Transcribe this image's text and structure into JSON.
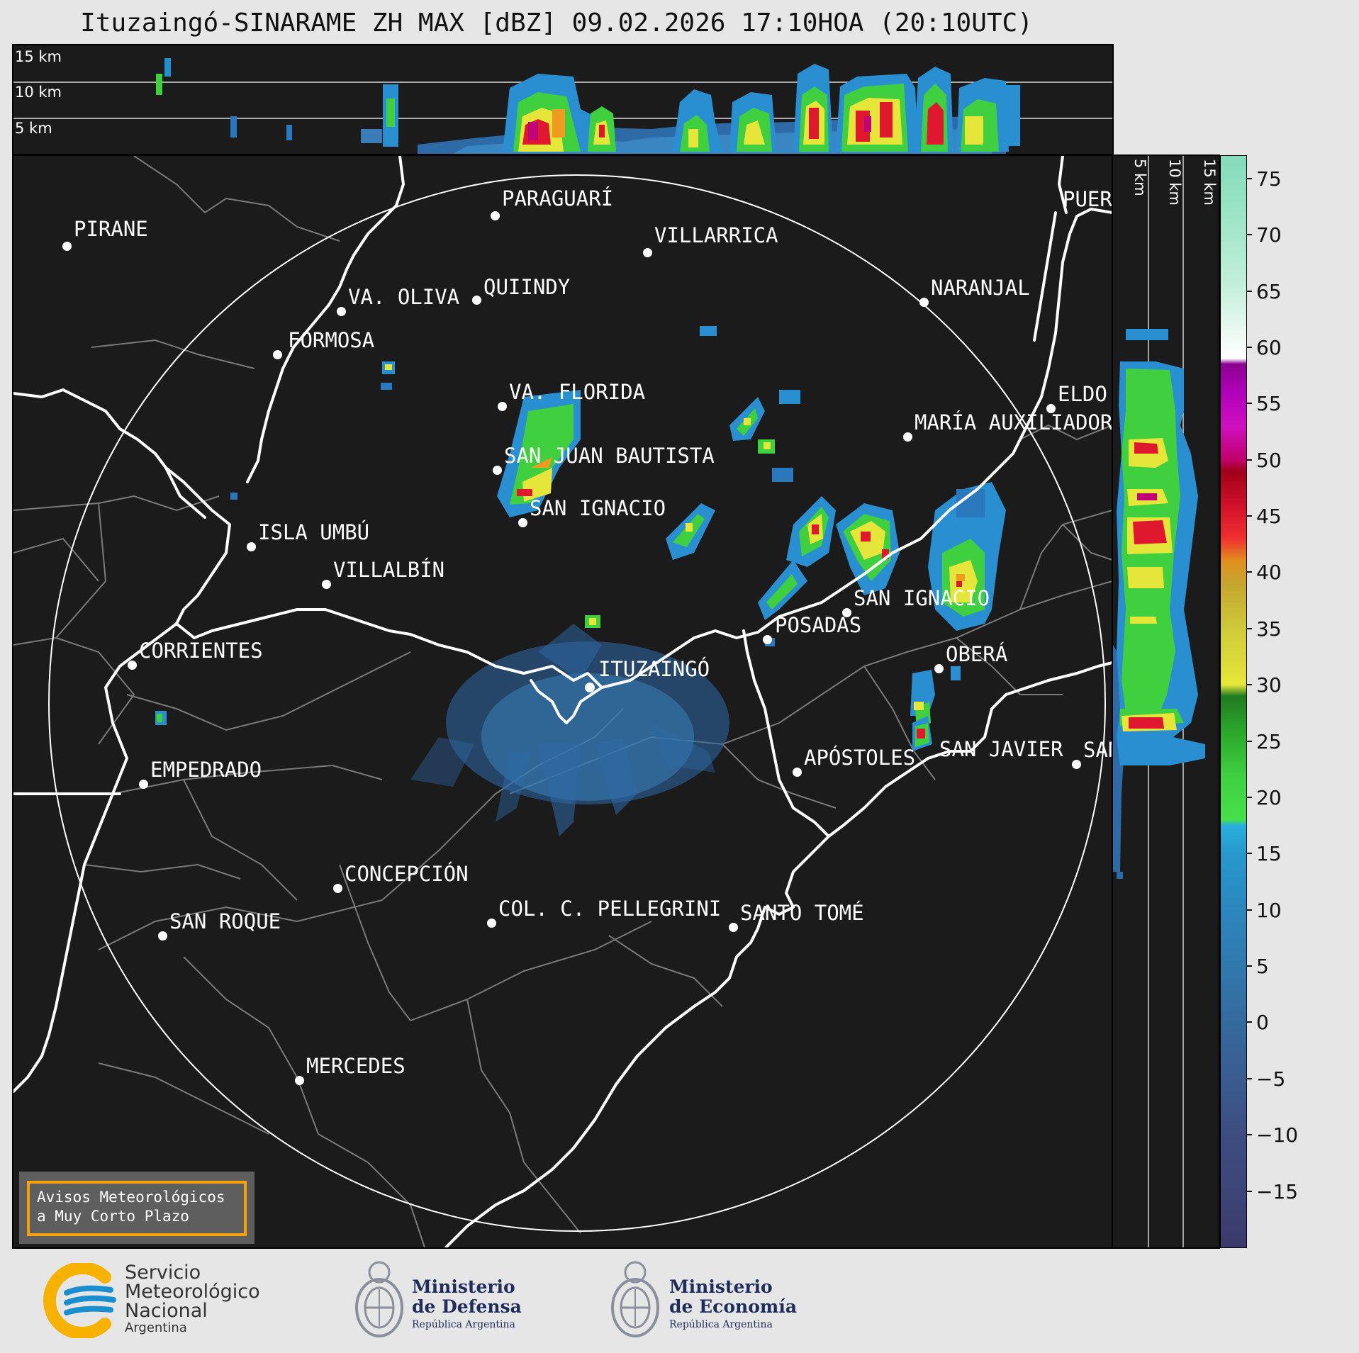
{
  "title": "Ituzaingó-SINARAME ZH MAX [dBZ] 09.02.2026 17:10HOA (20:10UTC)",
  "top_panel": {
    "height_labels": [
      "15 km",
      "10 km",
      "5 km"
    ]
  },
  "side_panel": {
    "height_labels": [
      "5 km",
      "10 km",
      "15 km"
    ]
  },
  "colorbar": {
    "unit": "dBZ",
    "ticks": [
      "75",
      "70",
      "65",
      "60",
      "55",
      "50",
      "45",
      "40",
      "35",
      "30",
      "25",
      "20",
      "15",
      "10",
      "5",
      "0",
      "−5",
      "−10",
      "−15"
    ]
  },
  "cities": [
    {
      "name": "PIRANE"
    },
    {
      "name": "PARAGUARÍ"
    },
    {
      "name": "VILLARRICA"
    },
    {
      "name": "PUERTO"
    },
    {
      "name": "QUIINDY"
    },
    {
      "name": "VA. OLIVA"
    },
    {
      "name": "NARANJAL"
    },
    {
      "name": "FORMOSA"
    },
    {
      "name": "VA. FLORIDA"
    },
    {
      "name": "ELDORADO"
    },
    {
      "name": "MARÍA AUXILIADORA"
    },
    {
      "name": "SAN JUAN BAUTISTA"
    },
    {
      "name": "SAN IGNACIO"
    },
    {
      "name": "ISLA UMBÚ"
    },
    {
      "name": "VILLALBÍN"
    },
    {
      "name": "SAN IGNACIO"
    },
    {
      "name": "POSADAS"
    },
    {
      "name": "CORRIENTES"
    },
    {
      "name": "ITUZAINGÓ"
    },
    {
      "name": "OBERÁ"
    },
    {
      "name": "APÓSTOLES"
    },
    {
      "name": "SAN JAVIER"
    },
    {
      "name": "SAN"
    },
    {
      "name": "EMPEDRADO"
    },
    {
      "name": "CONCEPCIÓN"
    },
    {
      "name": "COL. C. PELLEGRINI"
    },
    {
      "name": "SANTO TOMÉ"
    },
    {
      "name": "SAN ROQUE"
    },
    {
      "name": "MERCEDES"
    }
  ],
  "warning": {
    "line1": "Avisos Meteorológicos",
    "line2": "a Muy Corto Plazo"
  },
  "logos": {
    "smn": {
      "line1": "Servicio",
      "line2": "Meteorológico",
      "line3": "Nacional",
      "line4": "Argentina"
    },
    "defensa": {
      "line1": "Ministerio",
      "line2": "de Defensa",
      "line3": "República Argentina"
    },
    "economia": {
      "line1": "Ministerio",
      "line2": "de Economía",
      "line3": "República Argentina"
    }
  },
  "colors": {
    "panel_bg": "#1b1b1b",
    "page_bg": "#e6e6e6",
    "warning_border": "#f5a10c",
    "smn_yellow": "#f7b200",
    "smn_blue": "#1a8fd0"
  }
}
